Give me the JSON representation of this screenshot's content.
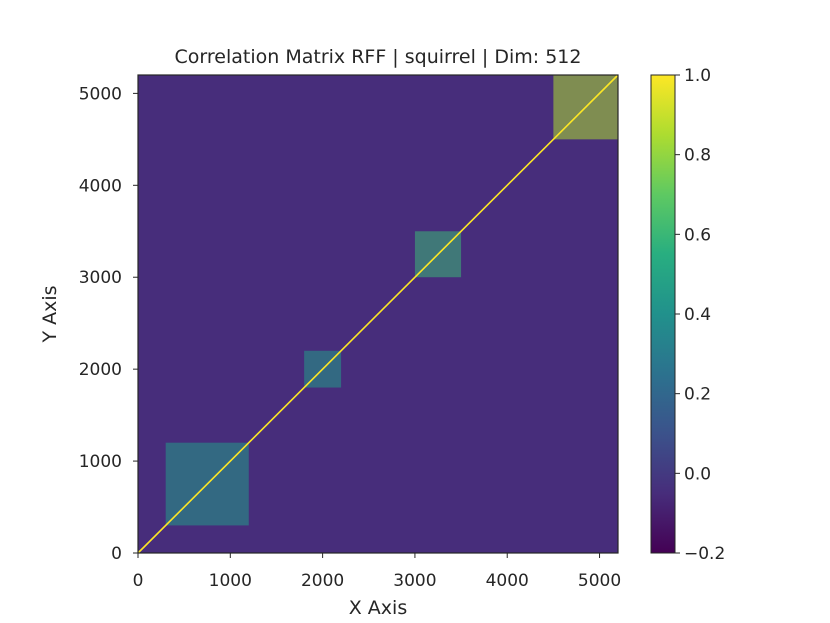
{
  "chart_data": {
    "type": "heatmap",
    "title": "Correlation Matrix RFF | squirrel | Dim: 512",
    "xlabel": "X Axis",
    "ylabel": "Y Axis",
    "xlim": [
      0,
      5200
    ],
    "ylim": [
      0,
      5200
    ],
    "x_ticks": [
      0,
      1000,
      2000,
      3000,
      4000,
      5000
    ],
    "x_tick_labels": [
      "0",
      "1000",
      "2000",
      "3000",
      "4000",
      "5000"
    ],
    "y_ticks": [
      0,
      1000,
      2000,
      3000,
      4000,
      5000
    ],
    "y_tick_labels": [
      "0",
      "1000",
      "2000",
      "3000",
      "4000",
      "5000"
    ],
    "colormap": "viridis",
    "color_range": [
      -0.2,
      1.0
    ],
    "colorbar_ticks": [
      -0.2,
      0.0,
      0.2,
      0.4,
      0.6,
      0.8,
      1.0
    ],
    "colorbar_tick_labels": [
      "−0.2",
      "0.0",
      "0.2",
      "0.4",
      "0.6",
      "0.8",
      "1.0"
    ],
    "diagonal_value": 1.0,
    "background_value": -0.05,
    "high_correlation_blocks": [
      {
        "x_range": [
          4500,
          5200
        ],
        "y_range": [
          4500,
          5200
        ],
        "value": 0.85
      },
      {
        "x_range": [
          3000,
          3500
        ],
        "y_range": [
          3000,
          3500
        ],
        "value": 0.6
      },
      {
        "x_range": [
          300,
          1200
        ],
        "y_range": [
          300,
          1200
        ],
        "value": 0.45
      },
      {
        "x_range": [
          1800,
          2200
        ],
        "y_range": [
          1800,
          2200
        ],
        "value": 0.45
      }
    ],
    "grid": false
  }
}
